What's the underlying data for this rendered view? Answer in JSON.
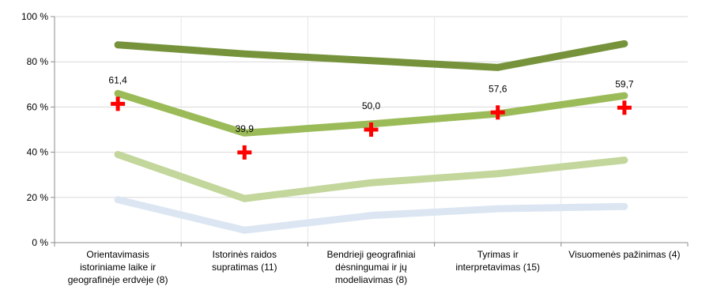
{
  "chart_data": {
    "type": "line",
    "title": "",
    "xlabel": "",
    "ylabel": "",
    "ylim": [
      0,
      100
    ],
    "yticks": [
      0,
      20,
      40,
      60,
      80,
      100
    ],
    "ytick_labels": [
      "0 %",
      "20 %",
      "40 %",
      "60 %",
      "80 %",
      "100 %"
    ],
    "grid": "horizontal",
    "legend": "none",
    "categories": [
      [
        "Orientavimasis",
        "istoriniame laike ir",
        "geografinėje erdvėje (8)"
      ],
      [
        "Istorinės raidos",
        "supratimas (11)"
      ],
      [
        "Bendrieji geografiniai",
        "dėsningumai ir jų",
        "modeliavimas (8)"
      ],
      [
        "Tyrimas ir",
        "interpretavimas (15)"
      ],
      [
        "Visuomenės pažinimas (4)"
      ]
    ],
    "series": [
      {
        "values": [
          87.5,
          83.5,
          80.5,
          77.5,
          88.0
        ],
        "color": "#76933c",
        "style": "thick-line"
      },
      {
        "values": [
          66.0,
          48.5,
          52.5,
          57.0,
          65.0
        ],
        "color": "#9bbb59",
        "style": "thick-line"
      },
      {
        "values": [
          39.0,
          19.5,
          26.5,
          30.5,
          36.5
        ],
        "color": "#c3d69b",
        "style": "thick-line"
      },
      {
        "values": [
          19.0,
          5.5,
          12.0,
          15.0,
          16.0
        ],
        "color": "#dce6f2",
        "style": "thick-line"
      },
      {
        "values": [
          61.4,
          39.9,
          50.0,
          57.6,
          59.7
        ],
        "color": "#ff0000",
        "style": "cross-markers",
        "data_labels": [
          "61,4",
          "39,9",
          "50,0",
          "57,6",
          "59,7"
        ]
      }
    ]
  }
}
